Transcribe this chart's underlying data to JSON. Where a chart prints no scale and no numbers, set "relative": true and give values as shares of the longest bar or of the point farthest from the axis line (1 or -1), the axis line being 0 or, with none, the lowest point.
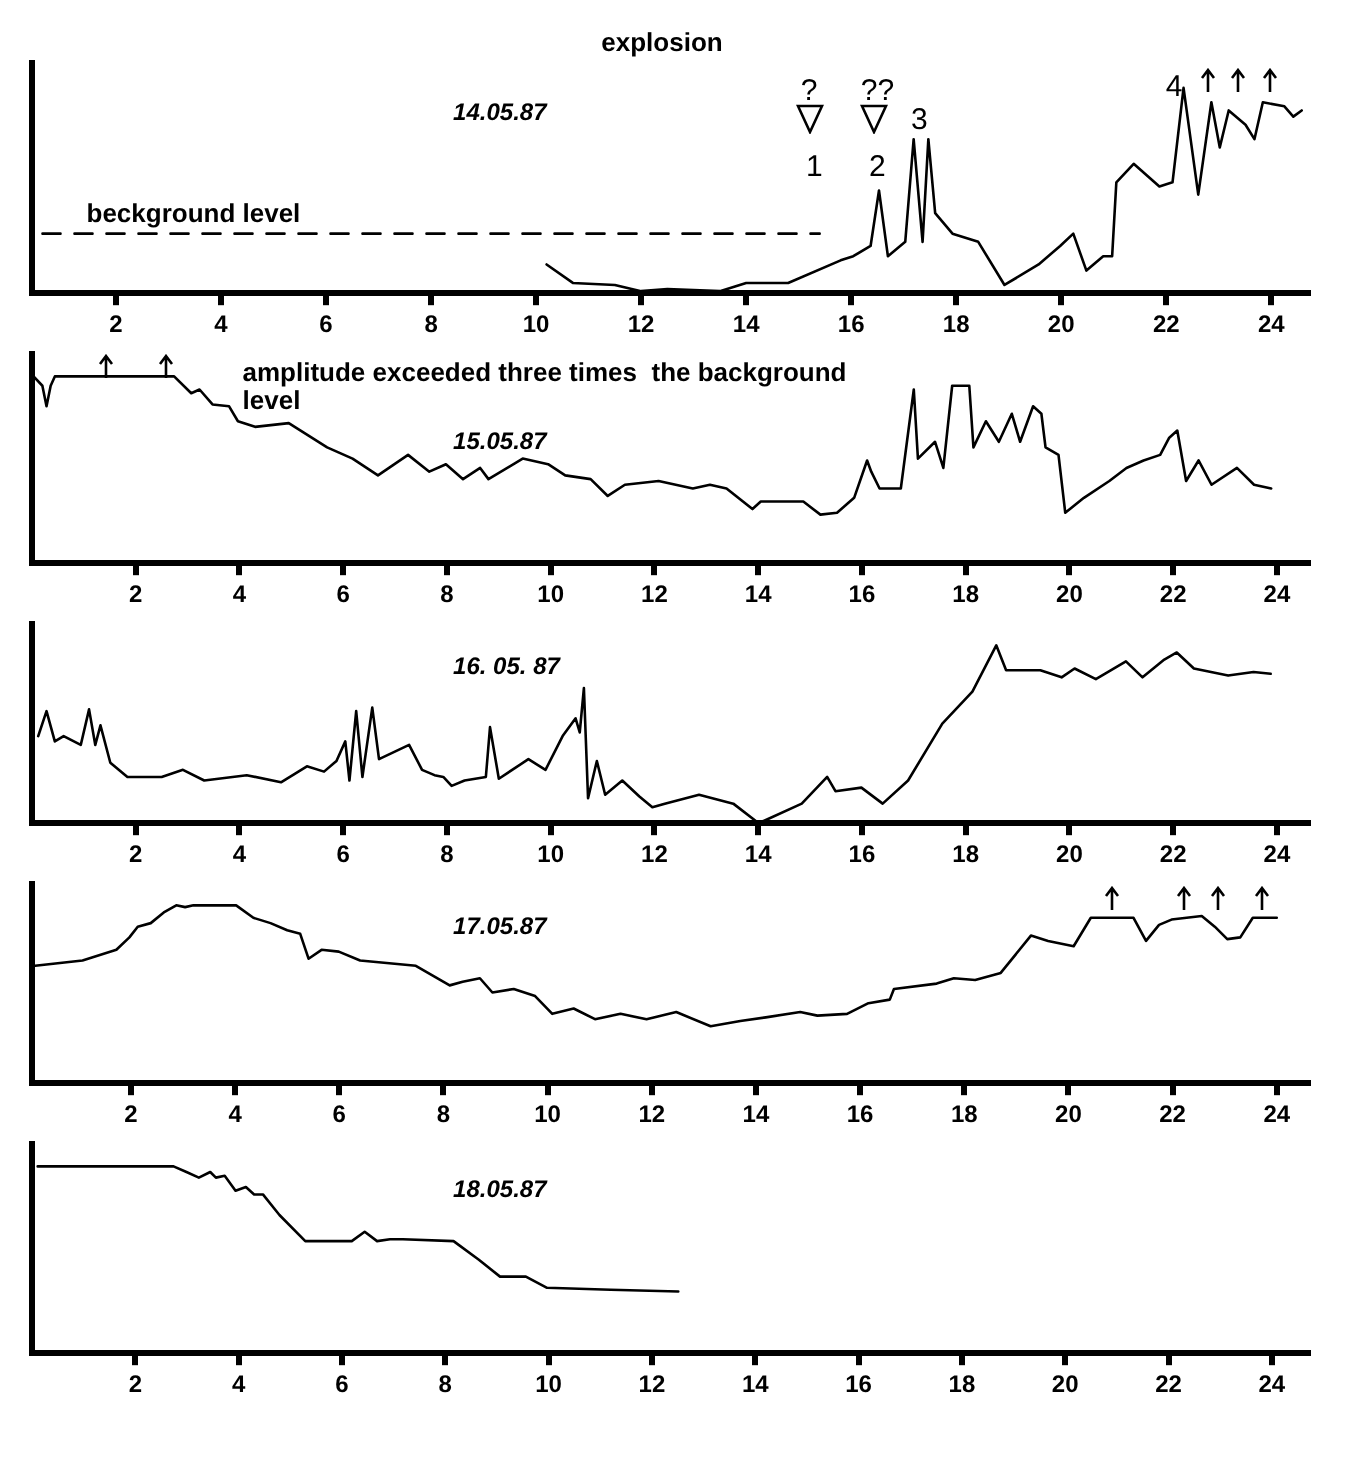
{
  "chart_data": [
    {
      "type": "line",
      "title": "explosion",
      "subtitle": "14.05.87",
      "relative": true,
      "xlim": [
        0.4,
        24.7
      ],
      "xticks": [
        2,
        4,
        6,
        8,
        10,
        12,
        14,
        16,
        18,
        20,
        22,
        24
      ],
      "annotations": [
        "?",
        "??",
        "1",
        "2",
        "3",
        "4"
      ],
      "series": [
        {
          "color": "#000000",
          "x": [
            10.2,
            10.7,
            11.5,
            12,
            12.5,
            13.5,
            14,
            14.8,
            15.8,
            16.04,
            16.37,
            16.53,
            16.7,
            17.03,
            17.19,
            17.36,
            17.47,
            17.6,
            17.93,
            18.42,
            18.92,
            19.57,
            19.98,
            20.23,
            20.48,
            20.8,
            20.97,
            21.05,
            21.38,
            21.87,
            22.12,
            22.33,
            22.61,
            22.86,
            23.02,
            23.19,
            23.51,
            23.68,
            23.84,
            24.25,
            24.42,
            24.58
          ],
          "values": [
            0.14,
            0.05,
            0.04,
            0.01,
            0.02,
            0.01,
            0.05,
            0.05,
            0.16,
            0.18,
            0.23,
            0.5,
            0.18,
            0.25,
            0.75,
            0.25,
            0.75,
            0.39,
            0.29,
            0.25,
            0.04,
            0.14,
            0.23,
            0.29,
            0.11,
            0.18,
            0.18,
            0.54,
            0.63,
            0.52,
            0.54,
            1,
            0.48,
            0.93,
            0.71,
            0.89,
            0.82,
            0.75,
            0.93,
            0.91,
            0.86,
            0.89
          ]
        },
        {
          "name": "beckground level",
          "type": "line",
          "line_style": "dashed",
          "color": "#000000",
          "x": [
            0.6,
            15.4
          ],
          "values": [
            0.29,
            0.29
          ]
        }
      ]
    },
    {
      "type": "line",
      "subtitle": "15.05.87",
      "relative": true,
      "xlim": [
        0,
        24.6
      ],
      "xticks": [
        2,
        4,
        6,
        8,
        10,
        12,
        14,
        16,
        18,
        20,
        22,
        24
      ],
      "annotations": [
        "amplitude exceeded three times  the background level"
      ],
      "series": [
        {
          "color": "#000000",
          "x": [
            0.03,
            0.2,
            0.28,
            0.36,
            0.44,
            2.74,
            3.07,
            3.23,
            3.48,
            3.8,
            3.97,
            4.3,
            4.95,
            5.69,
            6.18,
            6.67,
            7.25,
            7.66,
            7.98,
            8.31,
            8.64,
            8.8,
            9.46,
            9.95,
            10.28,
            10.77,
            11.1,
            11.43,
            12.08,
            12.74,
            13.07,
            13.39,
            13.89,
            14.05,
            14.87,
            15.2,
            15.52,
            15.85,
            16.1,
            16.18,
            16.34,
            16.75,
            17.0,
            17.08,
            17.41,
            17.57,
            17.74,
            18.07,
            18.15,
            18.39,
            18.64,
            18.89,
            19.05,
            19.3,
            19.46,
            19.54,
            19.79,
            19.92,
            20.28,
            20.77,
            21.1,
            21.43,
            21.75,
            21.92,
            22.08,
            22.25,
            22.49,
            22.74,
            23.23,
            23.56,
            23.89
          ],
          "values": [
            1.0,
            0.95,
            0.84,
            0.95,
            1.0,
            1.0,
            0.91,
            0.93,
            0.85,
            0.84,
            0.76,
            0.73,
            0.75,
            0.62,
            0.56,
            0.47,
            0.58,
            0.49,
            0.53,
            0.45,
            0.51,
            0.45,
            0.56,
            0.53,
            0.47,
            0.45,
            0.36,
            0.42,
            0.44,
            0.4,
            0.42,
            0.4,
            0.29,
            0.33,
            0.33,
            0.26,
            0.27,
            0.35,
            0.55,
            0.49,
            0.4,
            0.4,
            0.93,
            0.56,
            0.65,
            0.51,
            0.95,
            0.95,
            0.62,
            0.76,
            0.65,
            0.8,
            0.65,
            0.84,
            0.8,
            0.62,
            0.58,
            0.27,
            0.35,
            0.44,
            0.51,
            0.55,
            0.58,
            0.67,
            0.71,
            0.44,
            0.55,
            0.42,
            0.51,
            0.42,
            0.4
          ]
        }
      ]
    },
    {
      "type": "line",
      "subtitle": "16. 05. 87",
      "relative": true,
      "xlim": [
        0,
        24.6
      ],
      "xticks": [
        2,
        4,
        6,
        8,
        10,
        12,
        14,
        16,
        18,
        20,
        22,
        24
      ],
      "series": [
        {
          "color": "#000000",
          "x": [
            0.12,
            0.28,
            0.44,
            0.61,
            0.94,
            1.1,
            1.22,
            1.32,
            1.51,
            1.84,
            2.5,
            2.91,
            3.32,
            4.14,
            4.8,
            5.3,
            5.63,
            5.87,
            6.04,
            6.12,
            6.25,
            6.37,
            6.56,
            6.69,
            7.27,
            7.52,
            7.76,
            7.93,
            8.09,
            8.34,
            8.75,
            8.83,
            9.0,
            9.57,
            9.9,
            10.23,
            10.48,
            10.56,
            10.64,
            10.72,
            10.89,
            11.05,
            11.38,
            11.71,
            11.96,
            12.2,
            12.86,
            13.52,
            14.01,
            14.84,
            15.33,
            15.49,
            15.99,
            16.4,
            16.89,
            17.55,
            18.13,
            18.59,
            18.78,
            19.44,
            19.85,
            20.1,
            20.51,
            21.09,
            21.41,
            21.83,
            22.07,
            22.4,
            23.06,
            23.55,
            23.88
          ],
          "values": [
            0.49,
            0.63,
            0.46,
            0.49,
            0.44,
            0.64,
            0.44,
            0.55,
            0.34,
            0.26,
            0.26,
            0.3,
            0.24,
            0.27,
            0.23,
            0.32,
            0.29,
            0.35,
            0.46,
            0.24,
            0.63,
            0.26,
            0.65,
            0.36,
            0.44,
            0.3,
            0.27,
            0.26,
            0.21,
            0.24,
            0.26,
            0.54,
            0.25,
            0.36,
            0.3,
            0.49,
            0.59,
            0.51,
            0.76,
            0.14,
            0.35,
            0.16,
            0.24,
            0.15,
            0.09,
            0.11,
            0.16,
            0.11,
            0.0,
            0.11,
            0.26,
            0.18,
            0.2,
            0.11,
            0.24,
            0.56,
            0.74,
            1.0,
            0.86,
            0.86,
            0.82,
            0.87,
            0.81,
            0.91,
            0.82,
            0.92,
            0.96,
            0.87,
            0.83,
            0.85,
            0.84
          ]
        }
      ]
    },
    {
      "type": "line",
      "subtitle": "17.05.87",
      "relative": true,
      "xlim": [
        0.1,
        24.6
      ],
      "xticks": [
        2,
        4,
        6,
        8,
        10,
        12,
        14,
        16,
        18,
        20,
        22,
        24
      ],
      "series": [
        {
          "color": "#000000",
          "x": [
            0.16,
            1.07,
            1.72,
            1.97,
            2.13,
            2.38,
            2.63,
            2.87,
            3.04,
            3.2,
            4.02,
            4.35,
            4.68,
            5.0,
            5.25,
            5.41,
            5.66,
            5.99,
            6.4,
            7.47,
            8.12,
            8.37,
            8.7,
            8.94,
            9.35,
            9.76,
            10.09,
            10.5,
            10.91,
            11.4,
            11.9,
            12.47,
            13.13,
            13.7,
            14.19,
            14.85,
            15.18,
            15.75,
            16.16,
            16.57,
            16.65,
            17.47,
            17.8,
            18.21,
            18.7,
            19.28,
            19.61,
            20.1,
            20.43,
            21.25,
            21.49,
            21.74,
            21.98,
            22.56,
            22.81,
            23.05,
            23.3,
            23.54,
            24.0
          ],
          "values": [
            0.66,
            0.69,
            0.75,
            0.82,
            0.88,
            0.9,
            0.96,
            1.0,
            0.99,
            1.0,
            1.0,
            0.93,
            0.9,
            0.86,
            0.84,
            0.7,
            0.75,
            0.74,
            0.69,
            0.66,
            0.55,
            0.57,
            0.59,
            0.51,
            0.53,
            0.49,
            0.39,
            0.42,
            0.36,
            0.39,
            0.36,
            0.4,
            0.32,
            0.35,
            0.37,
            0.4,
            0.38,
            0.39,
            0.45,
            0.47,
            0.53,
            0.56,
            0.59,
            0.58,
            0.62,
            0.83,
            0.8,
            0.77,
            0.93,
            0.93,
            0.8,
            0.89,
            0.92,
            0.94,
            0.88,
            0.81,
            0.82,
            0.93,
            0.93
          ]
        }
      ]
    },
    {
      "type": "line",
      "subtitle": "18.05.87",
      "relative": true,
      "xlim": [
        0,
        24.7
      ],
      "xticks": [
        2,
        4,
        6,
        8,
        10,
        12,
        14,
        16,
        18,
        20,
        22,
        24
      ],
      "series": [
        {
          "color": "#000000",
          "x": [
            0.11,
            2.74,
            2.99,
            3.23,
            3.45,
            3.56,
            3.73,
            3.94,
            4.14,
            4.3,
            4.47,
            4.79,
            5.29,
            6.19,
            6.44,
            6.68,
            6.93,
            7.18,
            8.16,
            8.65,
            9.06,
            9.56,
            9.97,
            11.2,
            12.51
          ],
          "values": [
            1.0,
            1.0,
            0.97,
            0.94,
            0.97,
            0.94,
            0.95,
            0.87,
            0.89,
            0.85,
            0.85,
            0.74,
            0.6,
            0.6,
            0.65,
            0.6,
            0.61,
            0.61,
            0.6,
            0.5,
            0.41,
            0.41,
            0.35,
            0.34,
            0.33
          ]
        }
      ]
    }
  ]
}
